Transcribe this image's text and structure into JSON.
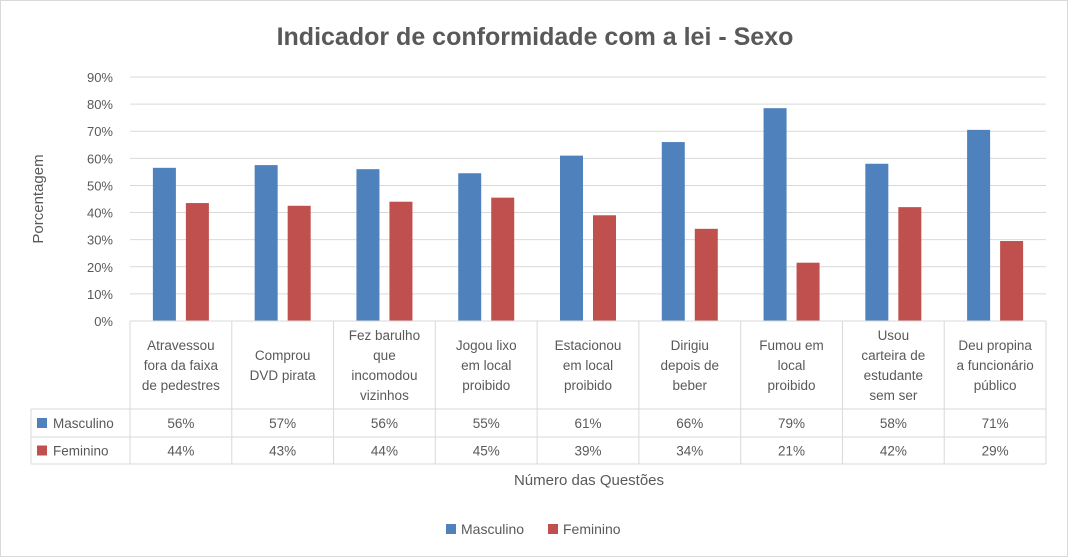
{
  "chart_data": {
    "type": "bar",
    "title": "Indicador de conformidade com a lei - Sexo",
    "xlabel": "Número das Questões",
    "ylabel": "Porcentagem",
    "ylim": [
      0,
      90
    ],
    "yticks": [
      "0%",
      "10%",
      "20%",
      "30%",
      "40%",
      "50%",
      "60%",
      "70%",
      "80%",
      "90%"
    ],
    "grid": true,
    "legend_position": "bottom",
    "categories": [
      "Atravessou fora da faixa de pedestres",
      "Comprou DVD pirata",
      "Fez barulho que incomodou vizinhos",
      "Jogou lixo em local proibido",
      "Estacionou em local proibido",
      "Dirigiu depois de beber",
      "Fumou em local proibido",
      "Usou carteira de estudante sem ser",
      "Deu propina a funcionário público"
    ],
    "category_lines": [
      [
        "Atravessou",
        "fora da faixa",
        "de pedestres"
      ],
      [
        "Comprou",
        "DVD pirata"
      ],
      [
        "Fez barulho",
        "que",
        "incomodou",
        "vizinhos"
      ],
      [
        "Jogou lixo",
        "em local",
        "proibido"
      ],
      [
        "Estacionou",
        "em local",
        "proibido"
      ],
      [
        "Dirigiu",
        "depois de",
        "beber"
      ],
      [
        "Fumou em",
        "local",
        "proibido"
      ],
      [
        "Usou",
        "carteira de",
        "estudante",
        "sem ser"
      ],
      [
        "Deu propina",
        "a funcionário",
        "público"
      ]
    ],
    "series": [
      {
        "name": "Masculino",
        "color": "#4f81bd",
        "values": [
          56.5,
          57.5,
          56,
          54.5,
          61,
          66,
          78.5,
          58,
          70.5
        ],
        "labels": [
          "56%",
          "57%",
          "56%",
          "55%",
          "61%",
          "66%",
          "79%",
          "58%",
          "71%"
        ]
      },
      {
        "name": "Feminino",
        "color": "#c0504d",
        "values": [
          43.5,
          42.5,
          44,
          45.5,
          39,
          34,
          21.5,
          42,
          29.5
        ],
        "labels": [
          "44%",
          "43%",
          "44%",
          "45%",
          "39%",
          "34%",
          "21%",
          "42%",
          "29%"
        ]
      }
    ]
  }
}
